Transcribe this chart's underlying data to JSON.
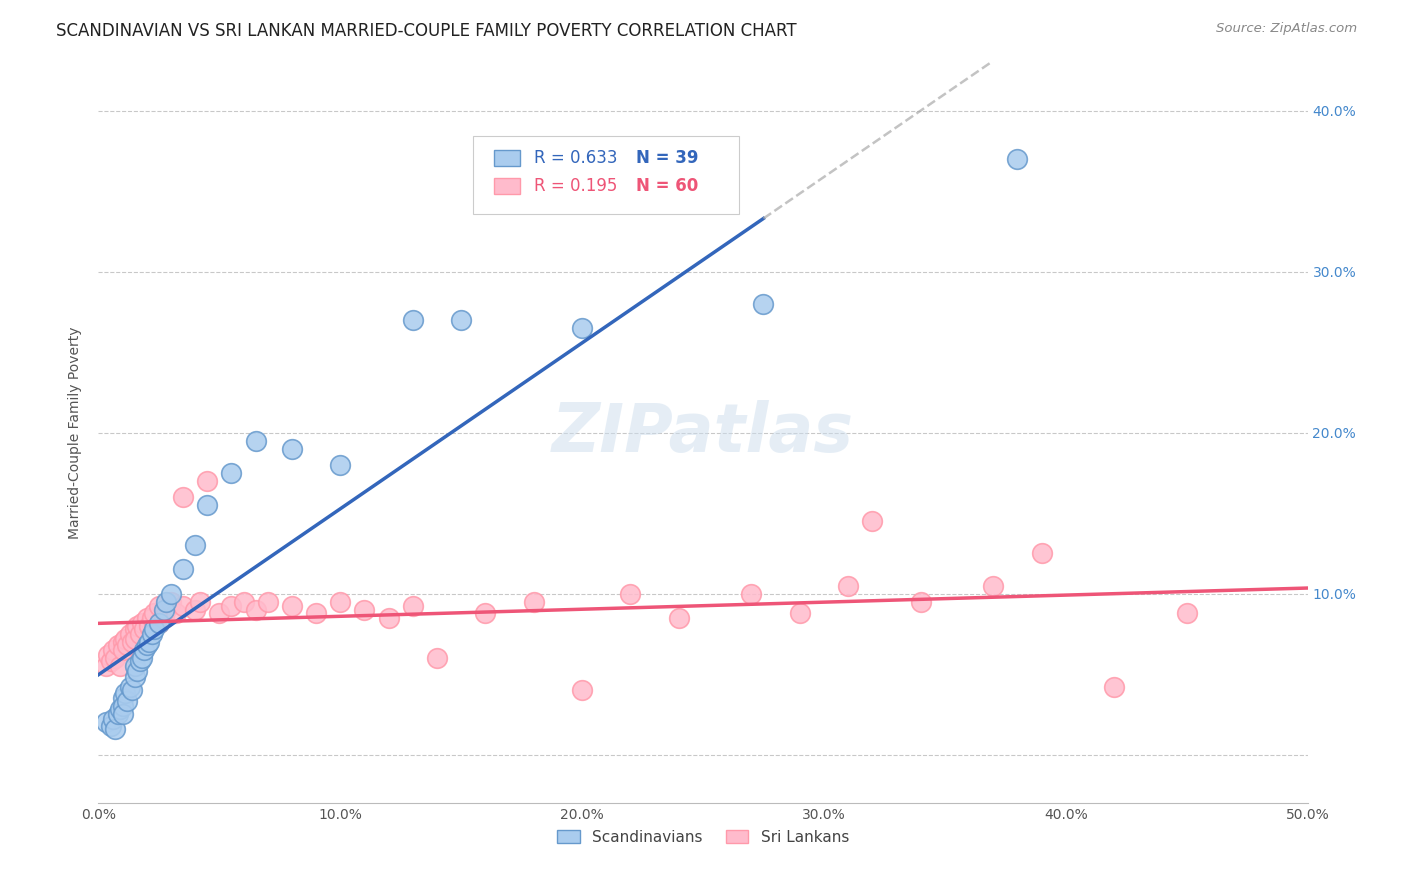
{
  "title": "SCANDINAVIAN VS SRI LANKAN MARRIED-COUPLE FAMILY POVERTY CORRELATION CHART",
  "source": "Source: ZipAtlas.com",
  "ylabel": "Married-Couple Family Poverty",
  "xlim": [
    0.0,
    0.5
  ],
  "ylim": [
    -0.03,
    0.43
  ],
  "xticks": [
    0.0,
    0.1,
    0.2,
    0.3,
    0.4,
    0.5
  ],
  "yticks": [
    0.0,
    0.1,
    0.2,
    0.3,
    0.4
  ],
  "xtick_labels": [
    "0.0%",
    "10.0%",
    "20.0%",
    "30.0%",
    "40.0%",
    "50.0%"
  ],
  "right_ytick_labels": [
    "",
    "10.0%",
    "20.0%",
    "30.0%",
    "40.0%"
  ],
  "legend_labels": [
    "Scandinavians",
    "Sri Lankans"
  ],
  "legend_r": [
    "R = 0.633",
    "R = 0.195"
  ],
  "legend_n": [
    "N = 39",
    "N = 60"
  ],
  "blue_color": "#6699CC",
  "pink_color": "#FF99AA",
  "blue_line_color": "#3366BB",
  "pink_line_color": "#EE5577",
  "blue_scatter_fill": "#AACCEE",
  "pink_scatter_fill": "#FFBBCC",
  "grid_color": "#BBBBBB",
  "watermark": "ZIPatlas",
  "watermark_color": "#CCDDED",
  "title_color": "#222222",
  "axis_label_color": "#555555",
  "right_tick_color": "#4488CC",
  "scandinavian_x": [
    0.003,
    0.005,
    0.006,
    0.007,
    0.008,
    0.009,
    0.01,
    0.01,
    0.01,
    0.011,
    0.012,
    0.013,
    0.014,
    0.015,
    0.015,
    0.016,
    0.017,
    0.018,
    0.019,
    0.02,
    0.021,
    0.022,
    0.023,
    0.025,
    0.027,
    0.028,
    0.03,
    0.035,
    0.04,
    0.045,
    0.055,
    0.065,
    0.08,
    0.1,
    0.13,
    0.15,
    0.2,
    0.275,
    0.38
  ],
  "scandinavian_y": [
    0.02,
    0.018,
    0.022,
    0.016,
    0.025,
    0.028,
    0.035,
    0.03,
    0.025,
    0.038,
    0.033,
    0.042,
    0.04,
    0.048,
    0.055,
    0.052,
    0.058,
    0.06,
    0.065,
    0.068,
    0.07,
    0.075,
    0.078,
    0.082,
    0.09,
    0.095,
    0.1,
    0.115,
    0.13,
    0.155,
    0.175,
    0.195,
    0.19,
    0.18,
    0.27,
    0.27,
    0.265,
    0.28,
    0.37
  ],
  "srilankan_x": [
    0.003,
    0.004,
    0.005,
    0.006,
    0.007,
    0.008,
    0.009,
    0.01,
    0.01,
    0.011,
    0.012,
    0.013,
    0.014,
    0.015,
    0.015,
    0.016,
    0.017,
    0.018,
    0.019,
    0.02,
    0.021,
    0.022,
    0.023,
    0.025,
    0.025,
    0.027,
    0.028,
    0.03,
    0.032,
    0.035,
    0.035,
    0.04,
    0.042,
    0.045,
    0.05,
    0.055,
    0.06,
    0.065,
    0.07,
    0.08,
    0.09,
    0.1,
    0.11,
    0.12,
    0.13,
    0.14,
    0.16,
    0.18,
    0.2,
    0.22,
    0.24,
    0.27,
    0.29,
    0.31,
    0.32,
    0.34,
    0.37,
    0.39,
    0.42,
    0.45
  ],
  "srilankan_y": [
    0.055,
    0.062,
    0.058,
    0.065,
    0.06,
    0.068,
    0.055,
    0.07,
    0.065,
    0.072,
    0.068,
    0.075,
    0.07,
    0.078,
    0.072,
    0.08,
    0.075,
    0.082,
    0.078,
    0.085,
    0.08,
    0.085,
    0.088,
    0.082,
    0.092,
    0.085,
    0.09,
    0.095,
    0.088,
    0.092,
    0.16,
    0.09,
    0.095,
    0.17,
    0.088,
    0.092,
    0.095,
    0.09,
    0.095,
    0.092,
    0.088,
    0.095,
    0.09,
    0.085,
    0.092,
    0.06,
    0.088,
    0.095,
    0.04,
    0.1,
    0.085,
    0.1,
    0.088,
    0.105,
    0.145,
    0.095,
    0.105,
    0.125,
    0.042,
    0.088
  ],
  "figsize": [
    14.06,
    8.92
  ],
  "dpi": 100
}
